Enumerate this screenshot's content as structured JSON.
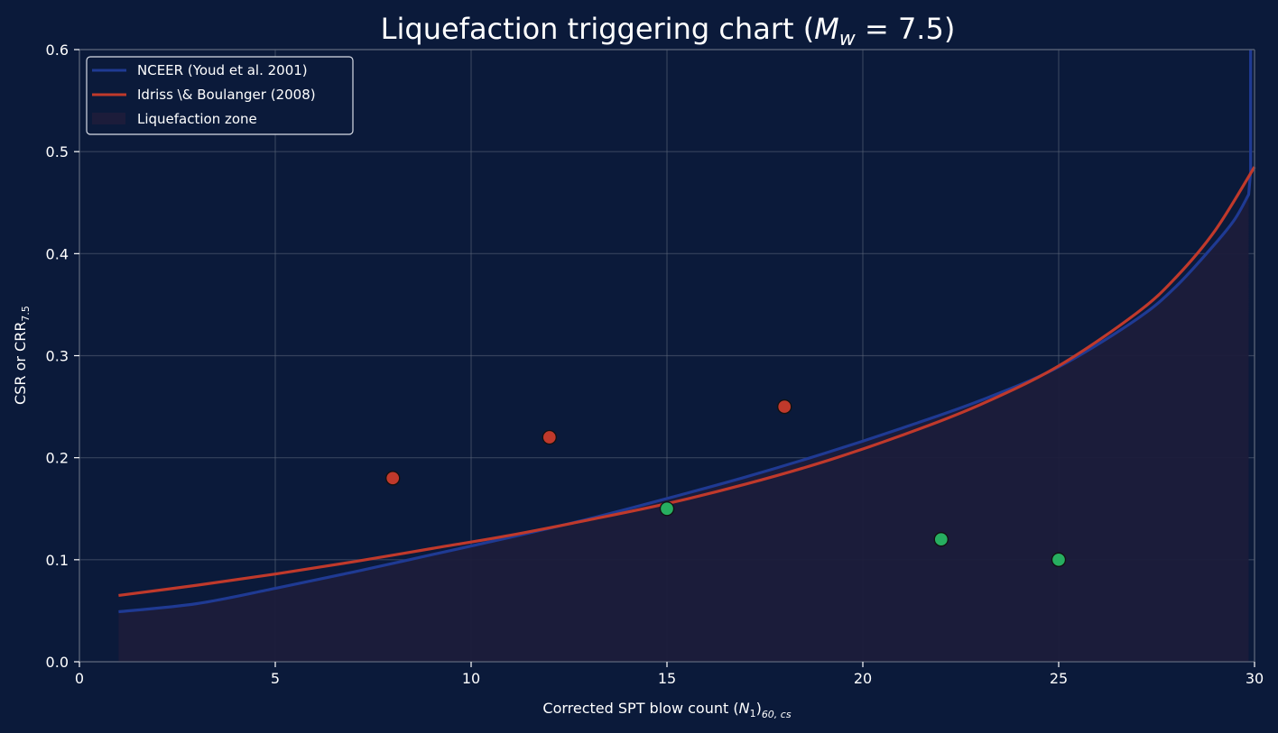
{
  "chart_data": {
    "type": "line",
    "title": "Liquefaction triggering chart (",
    "title_math": "M",
    "title_math_sub": "w",
    "title_tail": " = 7.5)",
    "xlabel": "Corrected SPT blow count (",
    "xlabel_math": "N",
    "xlabel_math_sub1": "1",
    "xlabel_close": ")",
    "xlabel_sub": "60, cs",
    "ylabel": "CSR or CRR",
    "ylabel_sub": "7.5",
    "xlim": [
      0,
      30
    ],
    "ylim": [
      0,
      0.6
    ],
    "xticks": [
      0,
      5,
      10,
      15,
      20,
      25,
      30
    ],
    "yticks": [
      0.0,
      0.1,
      0.2,
      0.3,
      0.4,
      0.5,
      0.6
    ],
    "xtick_labels": [
      "0",
      "5",
      "10",
      "15",
      "20",
      "25",
      "30"
    ],
    "ytick_labels": [
      "0.0",
      "0.1",
      "0.2",
      "0.3",
      "0.4",
      "0.5",
      "0.6"
    ],
    "grid": true,
    "legend_position": "top-left",
    "series": [
      {
        "name": "NCEER (Youd et al. 2001)",
        "color": "#1f3a93",
        "x": [
          1,
          3,
          5,
          7,
          9,
          11,
          13,
          15,
          17,
          19,
          21,
          23,
          25,
          27,
          28,
          29,
          29.5,
          29.85,
          29.9,
          29.9
        ],
        "y": [
          0.049,
          0.057,
          0.072,
          0.088,
          0.105,
          0.122,
          0.14,
          0.16,
          0.181,
          0.204,
          0.229,
          0.256,
          0.289,
          0.336,
          0.368,
          0.41,
          0.434,
          0.458,
          0.48,
          0.6
        ]
      },
      {
        "name": "Idriss \\& Boulanger (2008)",
        "color": "#c0392b",
        "x": [
          1,
          3,
          5,
          7,
          9,
          11,
          13,
          15,
          17,
          19,
          21,
          23,
          25,
          27,
          28,
          29,
          30
        ],
        "y": [
          0.065,
          0.075,
          0.086,
          0.098,
          0.111,
          0.124,
          0.139,
          0.155,
          0.174,
          0.196,
          0.222,
          0.252,
          0.29,
          0.342,
          0.377,
          0.423,
          0.485
        ]
      }
    ],
    "fill": {
      "name": "Liquefaction zone",
      "color": "#1c1c3a",
      "x": [
        1,
        3,
        5,
        7,
        9,
        11,
        13,
        15,
        17,
        19,
        21,
        23,
        25,
        27,
        28,
        29,
        29.5,
        29.85
      ],
      "y": [
        0.049,
        0.057,
        0.072,
        0.088,
        0.105,
        0.122,
        0.14,
        0.16,
        0.181,
        0.204,
        0.229,
        0.256,
        0.289,
        0.336,
        0.368,
        0.41,
        0.434,
        0.458
      ]
    },
    "points_liquefied": {
      "color": "#c0392b",
      "x": [
        8,
        12,
        18
      ],
      "y": [
        0.18,
        0.22,
        0.25
      ]
    },
    "points_nonliquefied": {
      "color": "#27ae60",
      "x": [
        15,
        22,
        25
      ],
      "y": [
        0.15,
        0.12,
        0.1
      ]
    }
  }
}
